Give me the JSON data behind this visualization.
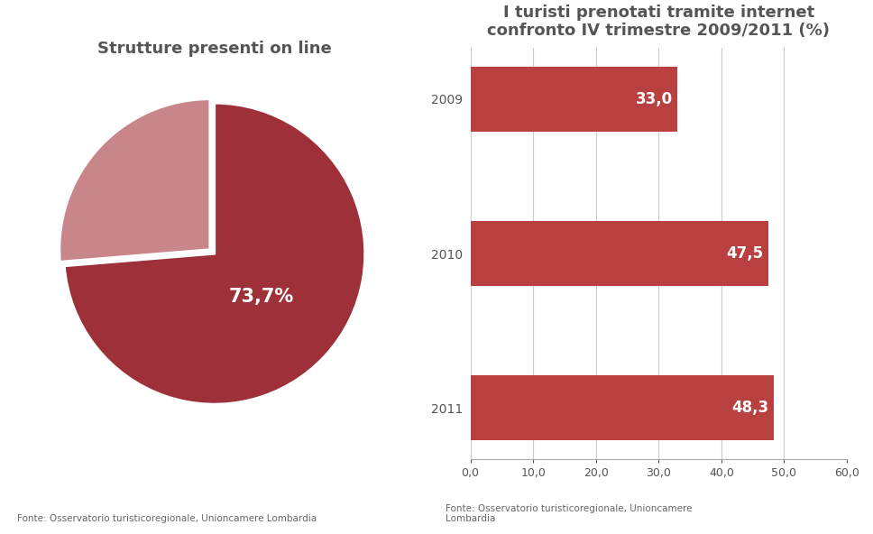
{
  "pie_title": "Strutture presenti on line",
  "pie_values": [
    73.7,
    26.3
  ],
  "pie_colors": [
    "#9e3039",
    "#c9868a"
  ],
  "pie_label": "73,7%",
  "pie_label_color": "white",
  "pie_label_fontsize": 15,
  "pie_explode": [
    0,
    0.04
  ],
  "bar_title": "I turisti prenotati tramite internet\nconfronto IV trimestre 2009/2011 (%)",
  "bar_categories": [
    "2011",
    "2010",
    "2009"
  ],
  "bar_values": [
    48.3,
    47.5,
    33.0
  ],
  "bar_labels": [
    "48,3",
    "47,5",
    "33,0"
  ],
  "bar_color": "#b94040",
  "bar_label_color": "white",
  "bar_label_fontsize": 12,
  "xlim": [
    0,
    60
  ],
  "xticks": [
    0,
    10,
    20,
    30,
    40,
    50,
    60
  ],
  "xtick_labels": [
    "0,0",
    "10,0",
    "20,0",
    "30,0",
    "40,0",
    "50,0",
    "60,0"
  ],
  "bar_title_fontsize": 13,
  "pie_title_fontsize": 13,
  "footnote_left": "Fonte: Osservatorio turisticoregionale, Unioncamere Lombardia",
  "footnote_right": "Fonte: Osservatorio turisticoregionale, Unioncamere\nLombardia",
  "footnote_fontsize": 7.5,
  "background_color": "#ffffff",
  "title_color": "#555555",
  "tick_color": "#555555"
}
